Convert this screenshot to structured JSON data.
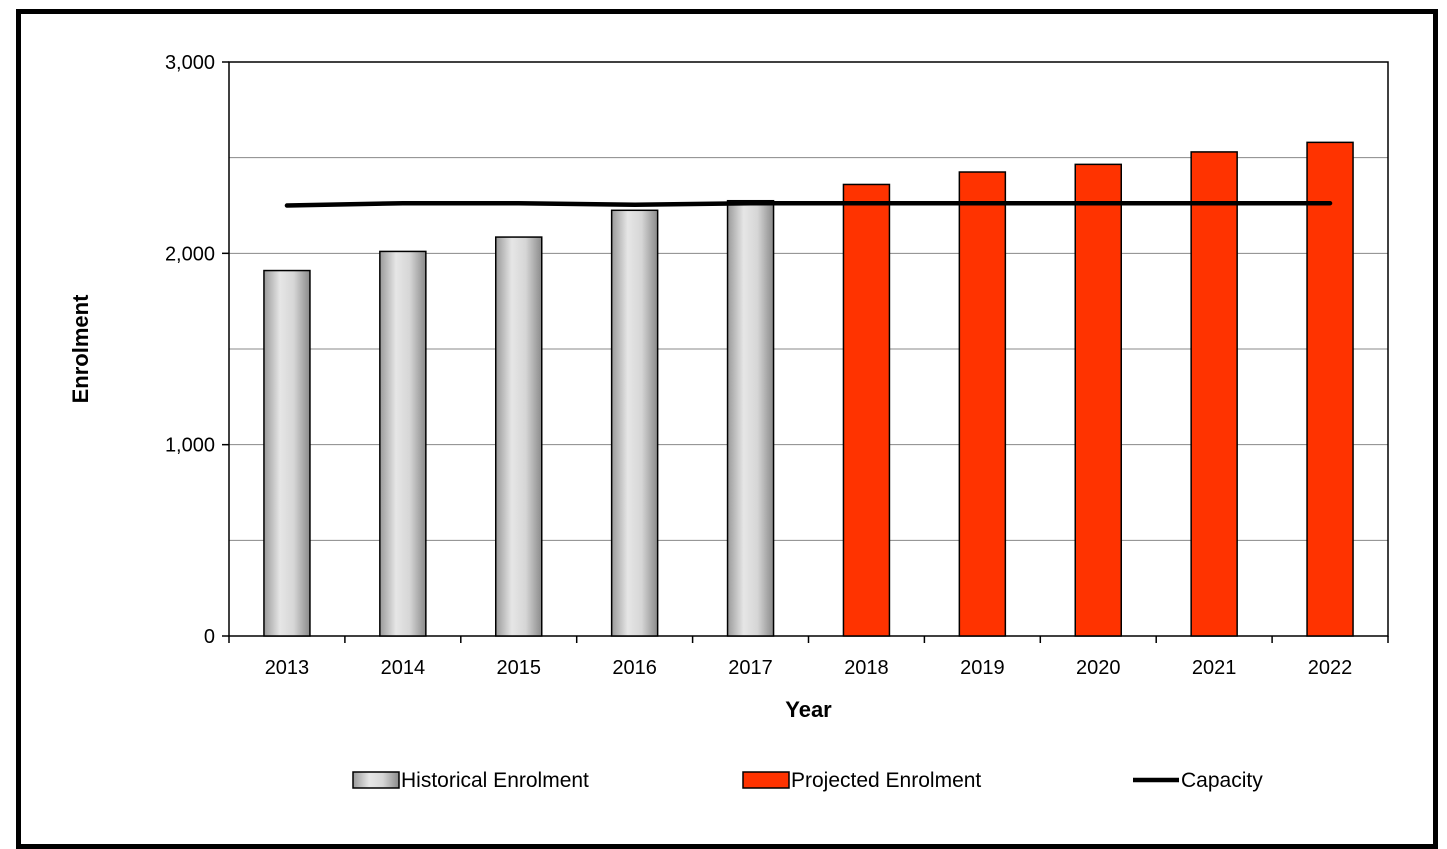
{
  "chart_data": {
    "type": "bar",
    "xlabel": "Year",
    "ylabel": "Enrolment",
    "ylim": [
      0,
      3000
    ],
    "yticks": [
      0,
      1000,
      2000,
      3000
    ],
    "ytick_labels": [
      "0",
      "1,000",
      "2,000",
      "3,000"
    ],
    "minor_gridlines": [
      500,
      1500,
      2500
    ],
    "grid": true,
    "legend_position": "bottom",
    "categories": [
      "2013",
      "2014",
      "2015",
      "2016",
      "2017",
      "2018",
      "2019",
      "2020",
      "2021",
      "2022"
    ],
    "series": [
      {
        "name": "Historical Enrolment",
        "kind": "bar",
        "color": "#c8c8c8",
        "values": [
          1910,
          2010,
          2085,
          2225,
          2275,
          null,
          null,
          null,
          null,
          null
        ]
      },
      {
        "name": "Projected Enrolment",
        "kind": "bar",
        "color": "#ff3300",
        "values": [
          null,
          null,
          null,
          null,
          null,
          2360,
          2425,
          2465,
          2530,
          2580
        ]
      },
      {
        "name": "Capacity",
        "kind": "line",
        "color": "#000000",
        "values": [
          2250,
          2262,
          2262,
          2254,
          2262,
          2262,
          2262,
          2262,
          2262,
          2262
        ]
      }
    ]
  }
}
